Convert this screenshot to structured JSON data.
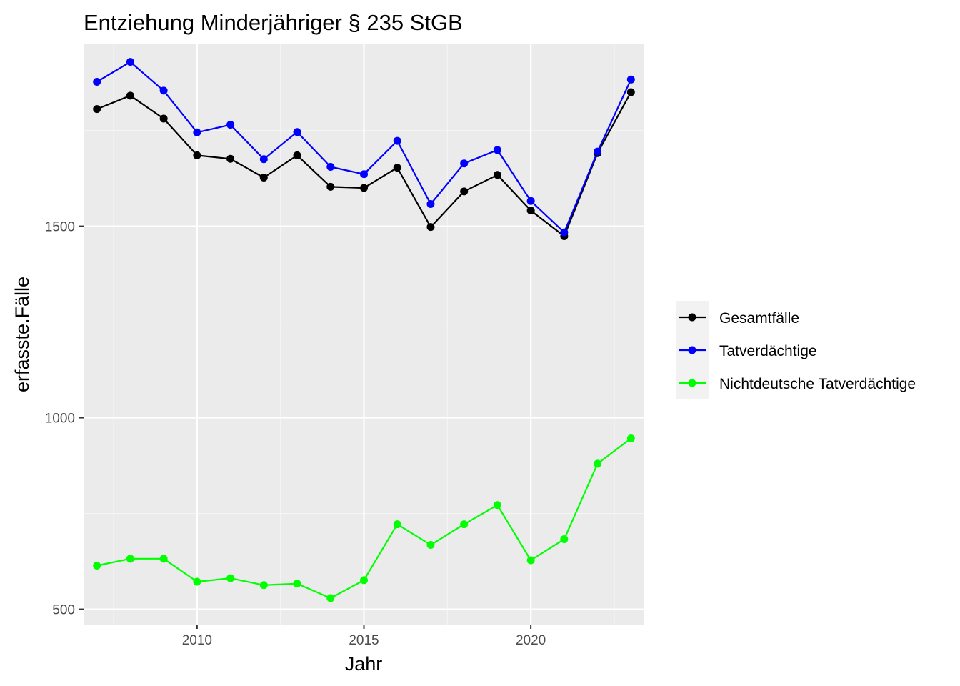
{
  "chart_data": {
    "type": "line",
    "title": "Entziehung Minderjähriger § 235 StGB",
    "xlabel": "Jahr",
    "ylabel": "erfasste.Fälle",
    "xlim": [
      2006.6,
      2023.4
    ],
    "ylim": [
      460,
      1975
    ],
    "x_ticks": [
      2010,
      2015,
      2020
    ],
    "x_tick_labels": [
      "2010",
      "2015",
      "2020"
    ],
    "y_ticks": [
      500,
      1000,
      1500
    ],
    "y_tick_labels": [
      "500",
      "1000",
      "1500"
    ],
    "grid": true,
    "legend_position": "right",
    "x": [
      2007,
      2008,
      2009,
      2010,
      2011,
      2012,
      2013,
      2014,
      2015,
      2016,
      2017,
      2018,
      2019,
      2020,
      2021,
      2022,
      2023
    ],
    "series": [
      {
        "name": "Gesamtfälle",
        "color": "#000000",
        "values": [
          1806,
          1841,
          1781,
          1685,
          1676,
          1627,
          1685,
          1603,
          1600,
          1653,
          1498,
          1591,
          1634,
          1541,
          1474,
          1691,
          1850
        ]
      },
      {
        "name": "Tatverdächtige",
        "color": "#0000ff",
        "values": [
          1877,
          1929,
          1854,
          1745,
          1765,
          1675,
          1746,
          1655,
          1636,
          1723,
          1558,
          1664,
          1699,
          1566,
          1484,
          1695,
          1883
        ]
      },
      {
        "name": "Nichtdeutsche Tatverdächtige",
        "color": "#00ff00",
        "values": [
          614,
          632,
          632,
          572,
          581,
          563,
          567,
          529,
          576,
          722,
          668,
          722,
          772,
          628,
          683,
          880,
          946
        ]
      }
    ],
    "colors": {
      "panel_background": "#ebebeb",
      "grid_major": "#ffffff",
      "grid_minor": "#f5f5f5",
      "legend_key_background": "#f2f2f2",
      "tick_text": "#4d4d4d",
      "tick_mark": "#333333"
    }
  }
}
